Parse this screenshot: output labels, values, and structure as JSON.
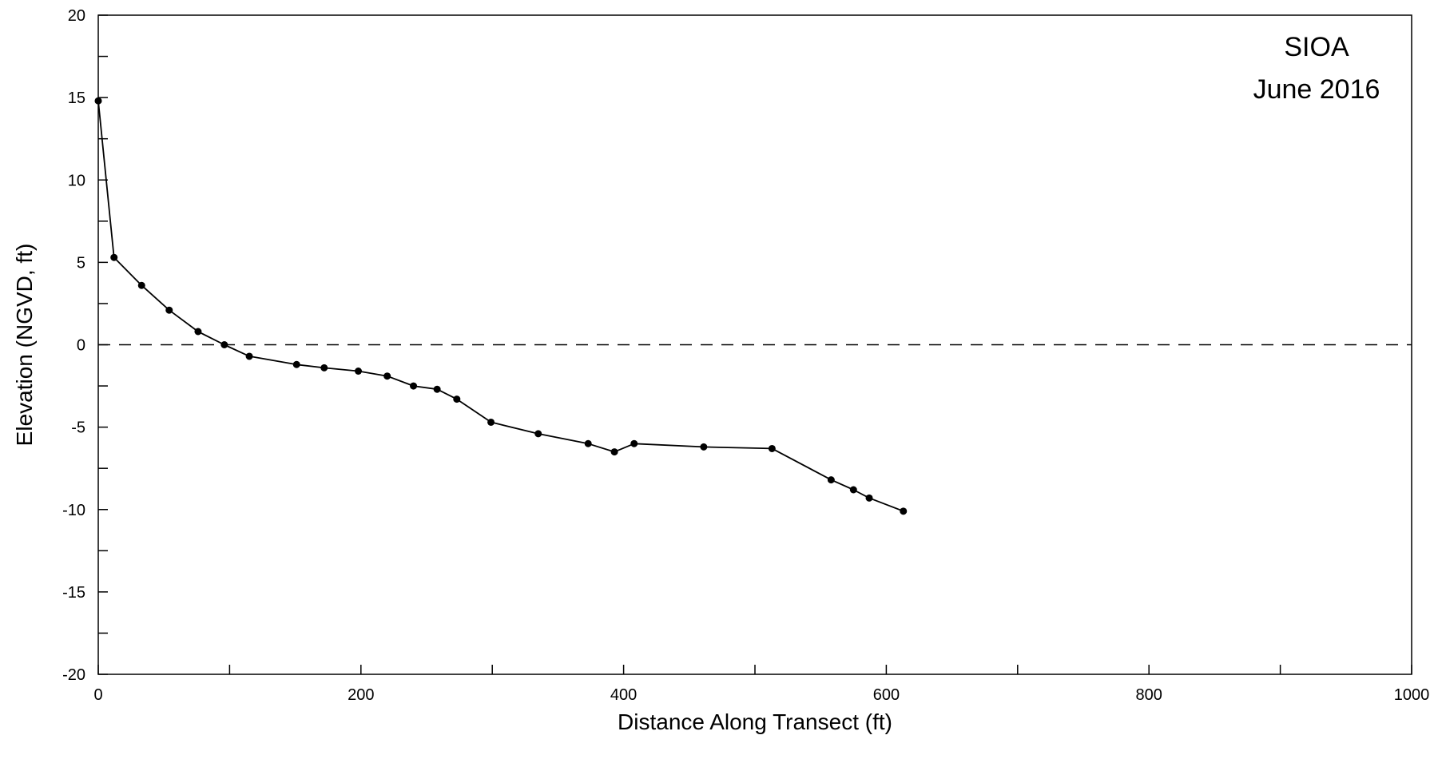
{
  "chart_data": {
    "type": "line",
    "x": [
      0,
      12,
      33,
      54,
      76,
      96,
      115,
      151,
      172,
      198,
      220,
      240,
      258,
      273,
      299,
      335,
      373,
      393,
      408,
      461,
      513,
      558,
      575,
      587,
      613
    ],
    "series": [
      {
        "values": [
          14.8,
          5.3,
          3.6,
          2.1,
          0.8,
          0.0,
          -0.7,
          -1.2,
          -1.4,
          -1.6,
          -1.9,
          -2.5,
          -2.7,
          -3.3,
          -4.7,
          -5.4,
          -6.0,
          -6.5,
          -6.0,
          -6.2,
          -6.3,
          -8.2,
          -8.8,
          -9.3,
          -10.1
        ]
      }
    ],
    "reference_line": {
      "y": 0,
      "style": "dashed"
    },
    "xlim": [
      0,
      1000
    ],
    "ylim": [
      -20,
      20
    ],
    "x_ticks": [
      0,
      200,
      400,
      600,
      800,
      1000
    ],
    "x_minor_ticks": [
      100,
      300,
      500,
      700,
      900
    ],
    "y_ticks": [
      -20,
      -15,
      -10,
      -5,
      0,
      5,
      10,
      15,
      20
    ],
    "y_minor_ticks": [
      -17.5,
      -12.5,
      -7.5,
      -2.5,
      2.5,
      7.5,
      12.5,
      17.5
    ],
    "x_tick_labels": [
      "0",
      "200",
      "400",
      "600",
      "800",
      "1000"
    ],
    "y_tick_labels": [
      "-20",
      "-15",
      "-10",
      "-5",
      "0",
      "5",
      "10",
      "15",
      "20"
    ],
    "xlabel": "Distance Along Transect (ft)",
    "ylabel": "Elevation (NGVD, ft)",
    "annotation_lines": [
      "SIOA",
      "June 2016"
    ],
    "annotation_position": "top-right",
    "grid": false,
    "line_color": "#000000",
    "marker_color": "#000000"
  }
}
